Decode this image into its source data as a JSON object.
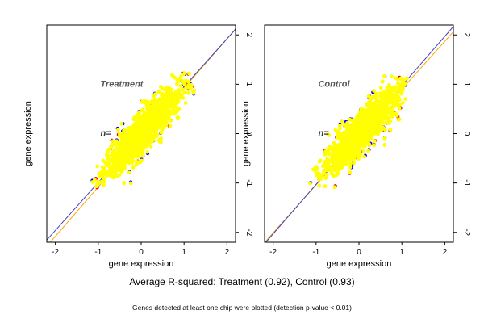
{
  "chart_data": [
    {
      "type": "scatter",
      "panel_label": "Treatment",
      "n_label": "n=",
      "xlabel": "gene expression",
      "ylabel": "gene expression",
      "xlim": [
        -2.2,
        2.2
      ],
      "ylim": [
        -2.2,
        2.2
      ],
      "xticks": [
        -2,
        -1,
        0,
        1,
        2
      ],
      "yticks": [
        -2,
        -1,
        0,
        1,
        2
      ],
      "grid": false,
      "legend": "none",
      "cloud": {
        "center": [
          0.05,
          0.05
        ],
        "x_range": [
          -1.15,
          1.25
        ],
        "y_range": [
          -1.1,
          1.25
        ],
        "color": "#ffff00"
      },
      "outlier_colors": [
        "#ff0000",
        "#0000ff",
        "#ffff00"
      ],
      "lines": [
        {
          "name": "",
          "color": "#ffa500",
          "intercept": -0.08,
          "slope": 1.0
        },
        {
          "name": "",
          "color": "#4040c0",
          "intercept": -0.02,
          "slope": 0.97
        }
      ]
    },
    {
      "type": "scatter",
      "panel_label": "Control",
      "n_label": "n=",
      "xlabel": "gene expression",
      "ylabel": "gene expression",
      "xlim": [
        -2.2,
        2.2
      ],
      "ylim": [
        -2.2,
        2.2
      ],
      "xticks": [
        -2,
        -1,
        0,
        1,
        2
      ],
      "yticks": [
        -2,
        -1,
        0,
        1,
        2
      ],
      "grid": false,
      "legend": "none",
      "cloud": {
        "center": [
          0.05,
          0.05
        ],
        "x_range": [
          -1.15,
          1.2
        ],
        "y_range": [
          -1.1,
          1.2
        ],
        "color": "#ffff00"
      },
      "outlier_colors": [
        "#ff0000",
        "#0000ff",
        "#ffff00"
      ],
      "lines": [
        {
          "name": "",
          "color": "#ffa500",
          "intercept": -0.07,
          "slope": 0.97
        },
        {
          "name": "",
          "color": "#4040c0",
          "intercept": -0.03,
          "slope": 1.0
        }
      ]
    }
  ],
  "captions": {
    "main": "Average R-squared: Treatment (0.92), Control (0.93)",
    "note": "Genes detected at least one chip were plotted (detection p-value < 0.01)"
  }
}
